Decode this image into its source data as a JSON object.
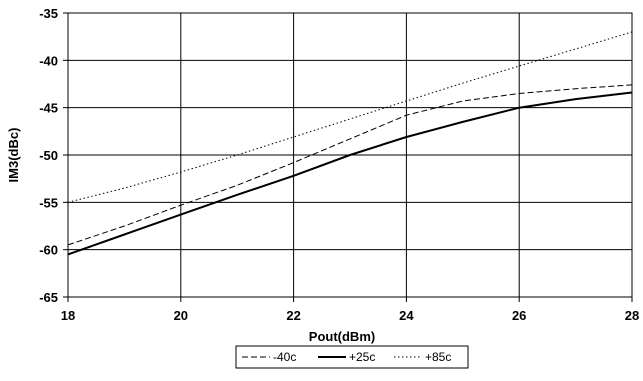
{
  "chart_data": {
    "type": "line",
    "xlabel": "Pout(dBm)",
    "ylabel": "IM3(dBc)",
    "xlim": [
      18,
      28
    ],
    "ylim": [
      -65,
      -35
    ],
    "x_ticks": [
      18,
      20,
      22,
      24,
      26,
      28
    ],
    "y_ticks": [
      -65,
      -60,
      -55,
      -50,
      -45,
      -40,
      -35
    ],
    "grid": true,
    "legend_position": "bottom",
    "series": [
      {
        "name": "-40c",
        "line_style": "dashed",
        "color": "#000000",
        "x": [
          18,
          19,
          20,
          21,
          22,
          23,
          24,
          25,
          26,
          27,
          28
        ],
        "y": [
          -59.5,
          -57.5,
          -55.3,
          -53.2,
          -50.8,
          -48.3,
          -45.8,
          -44.3,
          -43.5,
          -43.0,
          -42.6
        ]
      },
      {
        "name": "+25c",
        "line_style": "solid",
        "color": "#000000",
        "x": [
          18,
          19,
          20,
          21,
          22,
          23,
          24,
          25,
          26,
          27,
          28
        ],
        "y": [
          -60.5,
          -58.4,
          -56.3,
          -54.2,
          -52.2,
          -50.0,
          -48.1,
          -46.5,
          -45.0,
          -44.1,
          -43.4
        ]
      },
      {
        "name": "+85c",
        "line_style": "dotted",
        "color": "#000000",
        "x": [
          18,
          19,
          20,
          21,
          22,
          23,
          24,
          25,
          26,
          27,
          28
        ],
        "y": [
          -55.0,
          -53.5,
          -51.8,
          -50.0,
          -48.1,
          -46.2,
          -44.3,
          -42.4,
          -40.6,
          -38.8,
          -37.0
        ]
      }
    ]
  }
}
